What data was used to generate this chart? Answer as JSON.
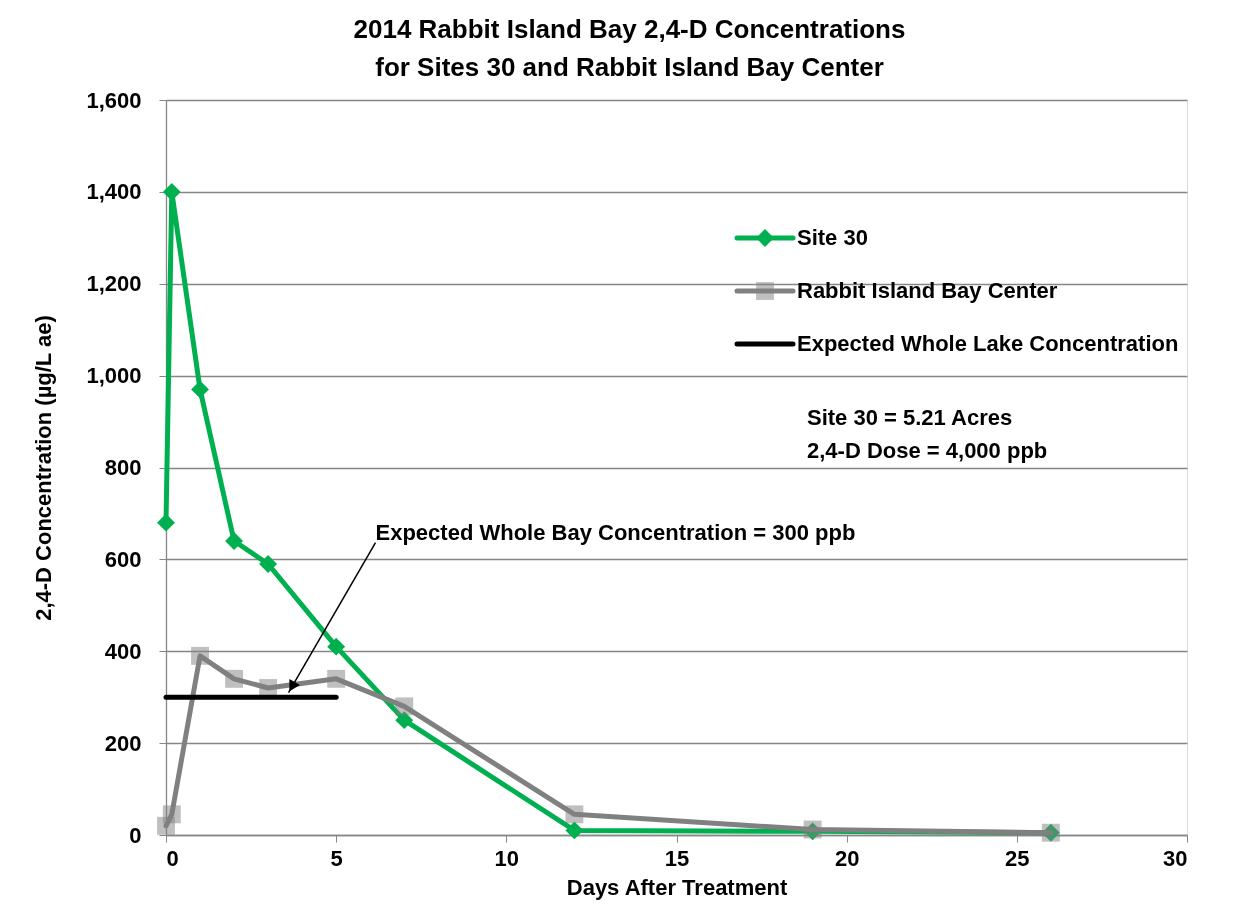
{
  "chart_data": {
    "type": "line",
    "title": "2014 Rabbit Island Bay 2,4-D Concentrations\nfor Sites 30 and Rabbit Island Bay Center",
    "xlabel": "Days After Treatment",
    "ylabel": "2,4-D Concentration (µg/L ae)",
    "series": [
      {
        "name": "Site 30",
        "color": "#00b050",
        "marker": "diamond",
        "x": [
          0,
          0.17,
          1,
          2,
          3,
          5,
          7,
          12,
          19,
          26
        ],
        "values": [
          680,
          1400,
          970,
          640,
          590,
          410,
          250,
          10,
          8,
          5
        ]
      },
      {
        "name": "Rabbit Island Bay Center",
        "color": "#808080",
        "marker": "square",
        "x": [
          0,
          0.17,
          1,
          2,
          3,
          5,
          7,
          12,
          19,
          26
        ],
        "values": [
          20,
          45,
          390,
          340,
          320,
          340,
          280,
          45,
          12,
          5
        ]
      },
      {
        "name": "Expected Whole Lake Concentration",
        "color": "#000000",
        "marker": "none",
        "x": [
          0,
          5
        ],
        "values": [
          300,
          300
        ]
      }
    ],
    "xlim": [
      0,
      30
    ],
    "xticks": [
      0,
      5,
      10,
      15,
      20,
      25,
      30
    ],
    "ylim": [
      0,
      1600
    ],
    "yticks": [
      0,
      200,
      400,
      600,
      800,
      {
        "value": 1000,
        "label": "1,000"
      },
      {
        "value": 1200,
        "label": "1,200"
      },
      {
        "value": 1400,
        "label": "1,400"
      },
      {
        "value": 1600,
        "label": "1,600"
      }
    ],
    "grid": "y",
    "legend": "top right",
    "annotations": [
      {
        "text": "Expected Whole Bay Concentration = 300 ppb",
        "x": 3.6,
        "y": 310
      },
      "Site 30 = 5.21 Acres",
      "2,4-D Dose = 4,000 ppb"
    ]
  }
}
